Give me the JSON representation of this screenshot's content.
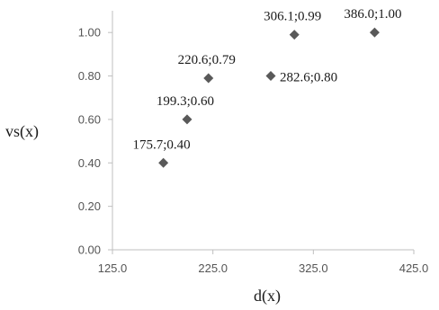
{
  "chart_data": {
    "type": "scatter",
    "xlabel": "d(x)",
    "ylabel": "vs(x)",
    "xlim": [
      125,
      425
    ],
    "ylim": [
      0,
      1.1
    ],
    "x_ticks": [
      125,
      225,
      325,
      425
    ],
    "x_tick_labels": [
      "125.0",
      "225.0",
      "325.0",
      "425.0"
    ],
    "y_ticks": [
      0,
      0.2,
      0.4,
      0.6,
      0.8,
      1.0
    ],
    "y_tick_labels": [
      "0.00",
      "0.20",
      "0.40",
      "0.60",
      "0.80",
      "1.00"
    ],
    "grid": false,
    "legend": "none",
    "marker": "diamond",
    "marker_color": "#595959",
    "points": [
      {
        "x": 175.7,
        "y": 0.4,
        "label": "175.7;0.40"
      },
      {
        "x": 199.3,
        "y": 0.6,
        "label": "199.3;0.60"
      },
      {
        "x": 220.6,
        "y": 0.79,
        "label": "220.6;0.79"
      },
      {
        "x": 282.6,
        "y": 0.8,
        "label": "282.6;0.80"
      },
      {
        "x": 306.1,
        "y": 0.99,
        "label": "306.1;0.99"
      },
      {
        "x": 386.0,
        "y": 1.0,
        "label": "386.0;1.00"
      }
    ]
  }
}
